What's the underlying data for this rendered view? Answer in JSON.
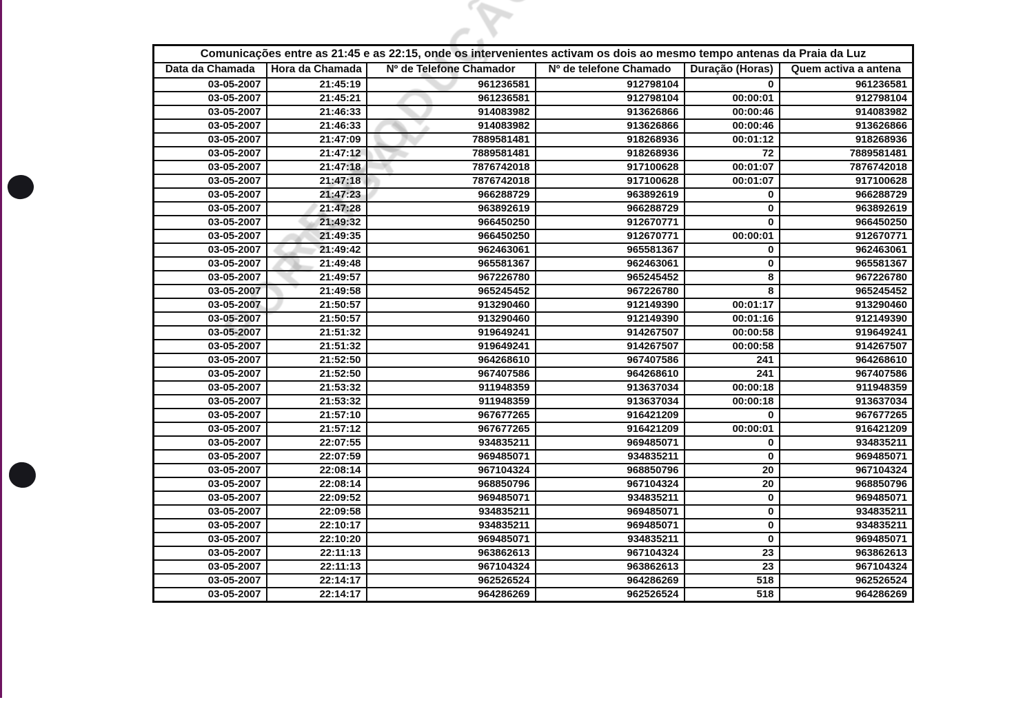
{
  "watermark": {
    "line1": "REPRODUÇÃO DE",
    "line2": "PORTUGAL"
  },
  "table": {
    "title": "Comunicações entre as 21:45 e as 22:15, onde os intervenientes activam os dois ao mesmo tempo antenas da Praia da Luz",
    "columns": [
      "Data da Chamada",
      "Hora da Chamada",
      "Nº de Telefone Chamador",
      "Nº de telefone Chamado",
      "Duração (Horas)",
      "Quem activa a antena"
    ],
    "rows": [
      [
        "03-05-2007",
        "21:45:19",
        "961236581",
        "912798104",
        "0",
        "961236581"
      ],
      [
        "03-05-2007",
        "21:45:21",
        "961236581",
        "912798104",
        "00:00:01",
        "912798104"
      ],
      [
        "03-05-2007",
        "21:46:33",
        "914083982",
        "913626866",
        "00:00:46",
        "914083982"
      ],
      [
        "03-05-2007",
        "21:46:33",
        "914083982",
        "913626866",
        "00:00:46",
        "913626866"
      ],
      [
        "03-05-2007",
        "21:47:09",
        "7889581481",
        "918268936",
        "00:01:12",
        "918268936"
      ],
      [
        "03-05-2007",
        "21:47:12",
        "7889581481",
        "918268936",
        "72",
        "7889581481"
      ],
      [
        "03-05-2007",
        "21:47:18",
        "7876742018",
        "917100628",
        "00:01:07",
        "7876742018"
      ],
      [
        "03-05-2007",
        "21:47:18",
        "7876742018",
        "917100628",
        "00:01:07",
        "917100628"
      ],
      [
        "03-05-2007",
        "21:47:23",
        "966288729",
        "963892619",
        "0",
        "966288729"
      ],
      [
        "03-05-2007",
        "21:47:28",
        "963892619",
        "966288729",
        "0",
        "963892619"
      ],
      [
        "03-05-2007",
        "21:49:32",
        "966450250",
        "912670771",
        "0",
        "966450250"
      ],
      [
        "03-05-2007",
        "21:49:35",
        "966450250",
        "912670771",
        "00:00:01",
        "912670771"
      ],
      [
        "03-05-2007",
        "21:49:42",
        "962463061",
        "965581367",
        "0",
        "962463061"
      ],
      [
        "03-05-2007",
        "21:49:48",
        "965581367",
        "962463061",
        "0",
        "965581367"
      ],
      [
        "03-05-2007",
        "21:49:57",
        "967226780",
        "965245452",
        "8",
        "967226780"
      ],
      [
        "03-05-2007",
        "21:49:58",
        "965245452",
        "967226780",
        "8",
        "965245452"
      ],
      [
        "03-05-2007",
        "21:50:57",
        "913290460",
        "912149390",
        "00:01:17",
        "913290460"
      ],
      [
        "03-05-2007",
        "21:50:57",
        "913290460",
        "912149390",
        "00:01:16",
        "912149390"
      ],
      [
        "03-05-2007",
        "21:51:32",
        "919649241",
        "914267507",
        "00:00:58",
        "919649241"
      ],
      [
        "03-05-2007",
        "21:51:32",
        "919649241",
        "914267507",
        "00:00:58",
        "914267507"
      ],
      [
        "03-05-2007",
        "21:52:50",
        "964268610",
        "967407586",
        "241",
        "964268610"
      ],
      [
        "03-05-2007",
        "21:52:50",
        "967407586",
        "964268610",
        "241",
        "967407586"
      ],
      [
        "03-05-2007",
        "21:53:32",
        "911948359",
        "913637034",
        "00:00:18",
        "911948359"
      ],
      [
        "03-05-2007",
        "21:53:32",
        "911948359",
        "913637034",
        "00:00:18",
        "913637034"
      ],
      [
        "03-05-2007",
        "21:57:10",
        "967677265",
        "916421209",
        "0",
        "967677265"
      ],
      [
        "03-05-2007",
        "21:57:12",
        "967677265",
        "916421209",
        "00:00:01",
        "916421209"
      ],
      [
        "03-05-2007",
        "22:07:55",
        "934835211",
        "969485071",
        "0",
        "934835211"
      ],
      [
        "03-05-2007",
        "22:07:59",
        "969485071",
        "934835211",
        "0",
        "969485071"
      ],
      [
        "03-05-2007",
        "22:08:14",
        "967104324",
        "968850796",
        "20",
        "967104324"
      ],
      [
        "03-05-2007",
        "22:08:14",
        "968850796",
        "967104324",
        "20",
        "968850796"
      ],
      [
        "03-05-2007",
        "22:09:52",
        "969485071",
        "934835211",
        "0",
        "969485071"
      ],
      [
        "03-05-2007",
        "22:09:58",
        "934835211",
        "969485071",
        "0",
        "934835211"
      ],
      [
        "03-05-2007",
        "22:10:17",
        "934835211",
        "969485071",
        "0",
        "934835211"
      ],
      [
        "03-05-2007",
        "22:10:20",
        "969485071",
        "934835211",
        "0",
        "969485071"
      ],
      [
        "03-05-2007",
        "22:11:13",
        "963862613",
        "967104324",
        "23",
        "963862613"
      ],
      [
        "03-05-2007",
        "22:11:13",
        "967104324",
        "963862613",
        "23",
        "967104324"
      ],
      [
        "03-05-2007",
        "22:14:17",
        "962526524",
        "964286269",
        "518",
        "962526524"
      ],
      [
        "03-05-2007",
        "22:14:17",
        "964286269",
        "962526524",
        "518",
        "964286269"
      ]
    ]
  }
}
